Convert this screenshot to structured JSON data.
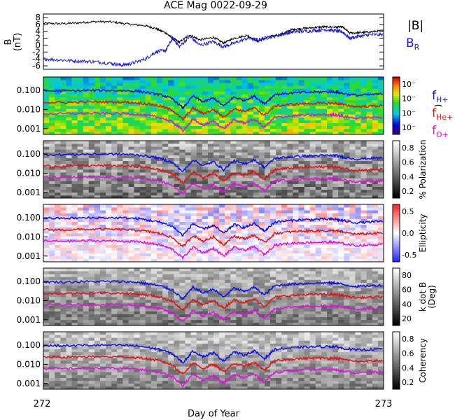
{
  "title": "ACE Mag 0022-09-29",
  "xlabel": "Day of Year",
  "x_ticks": [
    "272",
    "273"
  ],
  "colors": {
    "h": "#1010e8",
    "he": "#e81010",
    "o": "#e010e0",
    "bmag": "#000000",
    "br": "#1a1ae0"
  },
  "legend": {
    "bmag": "|B|",
    "br_main": "B",
    "br_sub": "R",
    "fh_main": "f",
    "fh_sub": "H+",
    "fhe_main": "f",
    "fhe_sub": "He+",
    "fo_main": "f",
    "fo_sub": "O+"
  },
  "chart_data": [
    {
      "panel": "B",
      "type": "line",
      "ylabel_line1": "B",
      "ylabel_line2": "(nT)",
      "ylim": [
        -7,
        9
      ],
      "yticks": [
        -6,
        -4,
        -2,
        0,
        2,
        4,
        6,
        8
      ],
      "xlim": [
        272,
        273
      ],
      "series": [
        {
          "name": "|B|",
          "points": [
            [
              272.0,
              6.3
            ],
            [
              272.05,
              6.2
            ],
            [
              272.1,
              6.4
            ],
            [
              272.15,
              6.8
            ],
            [
              272.2,
              6.7
            ],
            [
              272.25,
              6.1
            ],
            [
              272.3,
              5.6
            ],
            [
              272.33,
              4.8
            ],
            [
              272.36,
              3.5
            ],
            [
              272.38,
              2.0
            ],
            [
              272.4,
              0.8
            ],
            [
              272.43,
              3.0
            ],
            [
              272.46,
              1.5
            ],
            [
              272.5,
              2.2
            ],
            [
              272.53,
              0.6
            ],
            [
              272.56,
              2.0
            ],
            [
              272.6,
              2.8
            ],
            [
              272.63,
              1.0
            ],
            [
              272.66,
              2.3
            ],
            [
              272.7,
              3.2
            ],
            [
              272.73,
              4.5
            ],
            [
              272.76,
              4.8
            ],
            [
              272.8,
              5.1
            ],
            [
              272.83,
              5.3
            ],
            [
              272.86,
              5.2
            ],
            [
              272.88,
              5.2
            ],
            [
              272.9,
              3.5
            ],
            [
              272.93,
              3.6
            ],
            [
              272.96,
              3.8
            ],
            [
              273.0,
              4.2
            ]
          ]
        },
        {
          "name": "B_R",
          "points": [
            [
              272.0,
              -4.0
            ],
            [
              272.05,
              -4.3
            ],
            [
              272.1,
              -4.6
            ],
            [
              272.15,
              -4.8
            ],
            [
              272.2,
              -5.3
            ],
            [
              272.23,
              -5.8
            ],
            [
              272.26,
              -5.3
            ],
            [
              272.3,
              -4.0
            ],
            [
              272.33,
              -2.0
            ],
            [
              272.36,
              -1.5
            ],
            [
              272.38,
              2.0
            ],
            [
              272.4,
              -0.5
            ],
            [
              272.43,
              2.5
            ],
            [
              272.46,
              0.0
            ],
            [
              272.5,
              1.0
            ],
            [
              272.53,
              -0.5
            ],
            [
              272.56,
              0.5
            ],
            [
              272.6,
              2.0
            ],
            [
              272.63,
              1.5
            ],
            [
              272.66,
              2.2
            ],
            [
              272.7,
              3.0
            ],
            [
              272.73,
              3.8
            ],
            [
              272.76,
              4.0
            ],
            [
              272.8,
              4.2
            ],
            [
              272.83,
              4.5
            ],
            [
              272.86,
              4.1
            ],
            [
              272.88,
              3.8
            ],
            [
              272.9,
              2.0
            ],
            [
              272.93,
              2.6
            ],
            [
              272.96,
              3.0
            ],
            [
              273.0,
              3.0
            ]
          ]
        }
      ]
    },
    {
      "panel": "power-spectrum",
      "type": "heatmap",
      "yticks": [
        "0.100",
        "0.010",
        "0.001"
      ],
      "ylim": [
        0.0005,
        0.5
      ],
      "yscale": "log",
      "colorbar_palette": "rainbow",
      "colorbar_ticks": [
        "10⁻",
        "10⁻",
        "10⁻",
        "10⁻"
      ],
      "colorbar_title": ")"
    },
    {
      "panel": "polarization",
      "type": "heatmap",
      "yticks": [
        "0.100",
        "0.010",
        "0.001"
      ],
      "yscale": "log",
      "colorbar_palette": "grayscale",
      "colorbar_ticks": [
        "0.8",
        "0.6",
        "0.4",
        "0.2"
      ],
      "colorbar_title": "% Polarization"
    },
    {
      "panel": "ellipticity",
      "type": "heatmap",
      "yticks": [
        "0.100",
        "0.010",
        "0.001"
      ],
      "yscale": "log",
      "colorbar_palette": "blue-white-red",
      "colorbar_ticks": [
        "0.5",
        "0.0",
        "-0.5"
      ],
      "colorbar_title": "Ellipticity"
    },
    {
      "panel": "k-dot-b",
      "type": "heatmap",
      "yticks": [
        "0.100",
        "0.010",
        "0.001"
      ],
      "yscale": "log",
      "colorbar_palette": "grayscale",
      "colorbar_ticks": [
        "80",
        "60",
        "40",
        "20"
      ],
      "colorbar_title": "k dot B",
      "colorbar_title2": "(Deg)"
    },
    {
      "panel": "coherency",
      "type": "heatmap",
      "yticks": [
        "0.100",
        "0.010",
        "0.001"
      ],
      "yscale": "log",
      "colorbar_palette": "grayscale",
      "colorbar_ticks": [
        "0.8",
        "0.6",
        "0.4",
        "0.2"
      ],
      "colorbar_title": "Coherency"
    }
  ],
  "gyro_lines": {
    "x": [
      272.0,
      272.06,
      272.12,
      272.18,
      272.24,
      272.28,
      272.32,
      272.35,
      272.38,
      272.41,
      272.44,
      272.47,
      272.5,
      272.53,
      272.56,
      272.59,
      272.62,
      272.65,
      272.68,
      272.72,
      272.76,
      272.8,
      272.84,
      272.86,
      272.88,
      272.92,
      272.96,
      273.0
    ],
    "fh": [
      0.095,
      0.093,
      0.098,
      0.1,
      0.097,
      0.09,
      0.07,
      0.055,
      0.035,
      0.012,
      0.05,
      0.025,
      0.04,
      0.015,
      0.045,
      0.03,
      0.05,
      0.02,
      0.06,
      0.07,
      0.078,
      0.082,
      0.085,
      0.083,
      0.07,
      0.055,
      0.06,
      0.065
    ],
    "fhe": [
      0.024,
      0.023,
      0.025,
      0.025,
      0.024,
      0.022,
      0.018,
      0.014,
      0.009,
      0.003,
      0.012,
      0.006,
      0.01,
      0.004,
      0.011,
      0.008,
      0.012,
      0.005,
      0.015,
      0.018,
      0.02,
      0.021,
      0.021,
      0.021,
      0.018,
      0.014,
      0.015,
      0.016
    ],
    "fo": [
      0.006,
      0.006,
      0.0062,
      0.0063,
      0.006,
      0.0055,
      0.0045,
      0.0035,
      0.0022,
      0.0008,
      0.003,
      0.0015,
      0.0025,
      0.001,
      0.0028,
      0.002,
      0.003,
      0.0012,
      0.0038,
      0.0045,
      0.005,
      0.0052,
      0.0053,
      0.0052,
      0.0045,
      0.0035,
      0.0038,
      0.004
    ]
  }
}
